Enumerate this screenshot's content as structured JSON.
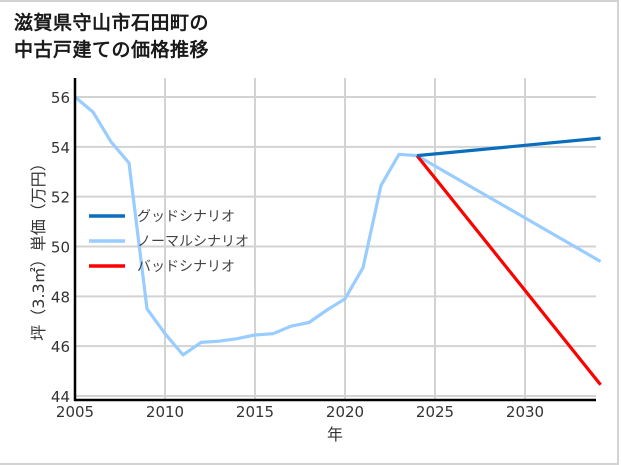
{
  "title_lines": [
    "滋賀県守山市石田町の",
    "中古戸建ての価格推移"
  ],
  "colors": {
    "good": "#0a6ebd",
    "normal": "#99ccff",
    "bad": "#ff0000",
    "grid": "#d3d3d3",
    "axis": "#000000",
    "border": "#d3d3d3"
  },
  "chart_data": {
    "type": "line",
    "title": "滋賀県守山市石田町の中古戸建ての価格推移",
    "xlabel": "年",
    "ylabel": "坪（3.3㎡）単価（万円）",
    "xlim": [
      2005,
      2034.2
    ],
    "ylim": [
      44,
      56.7
    ],
    "x_ticks": [
      2005,
      2010,
      2015,
      2020,
      2025,
      2030
    ],
    "y_ticks": [
      44,
      46,
      48,
      50,
      52,
      54,
      56
    ],
    "grid": true,
    "legend_position": "center-left",
    "series": [
      {
        "name": "グッドシナリオ",
        "color": "#0a6ebd",
        "x": [
          2024,
          2034.2
        ],
        "values": [
          53.65,
          54.35
        ]
      },
      {
        "name": "ノーマルシナリオ",
        "color": "#99ccff",
        "x": [
          2005,
          2006,
          2007,
          2008,
          2009,
          2010,
          2011,
          2012,
          2013,
          2014,
          2015,
          2016,
          2017,
          2018,
          2019,
          2020,
          2021,
          2022,
          2023,
          2024,
          2034.2
        ],
        "values": [
          56.0,
          55.4,
          54.2,
          53.35,
          47.5,
          46.5,
          45.65,
          46.15,
          46.2,
          46.3,
          46.45,
          46.5,
          46.8,
          46.95,
          47.45,
          47.9,
          49.15,
          52.45,
          53.7,
          53.65,
          49.4
        ]
      },
      {
        "name": "バッドシナリオ",
        "color": "#ff0000",
        "x": [
          2024,
          2034.2
        ],
        "values": [
          53.65,
          44.45
        ]
      }
    ]
  },
  "legend": [
    {
      "label": "グッドシナリオ",
      "color": "#0a6ebd"
    },
    {
      "label": "ノーマルシナリオ",
      "color": "#99ccff"
    },
    {
      "label": "バッドシナリオ",
      "color": "#ff0000"
    }
  ]
}
